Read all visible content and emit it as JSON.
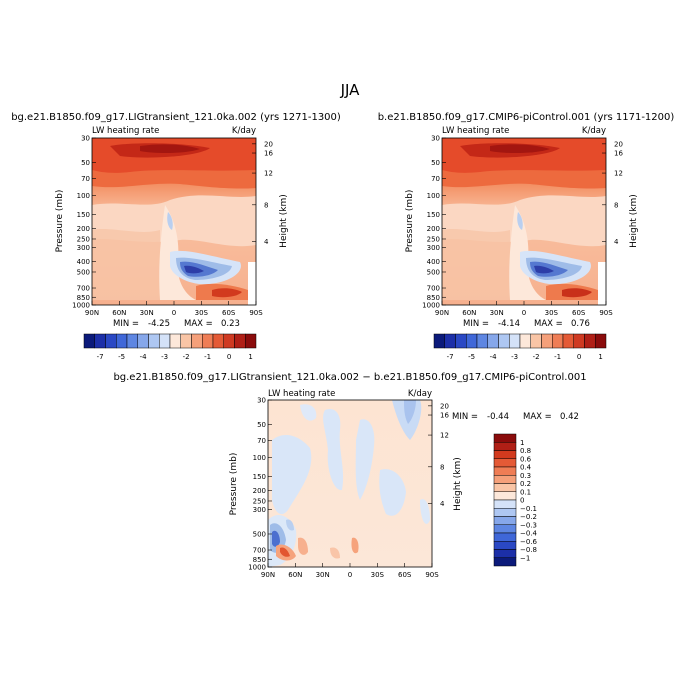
{
  "figure": {
    "season_title": "JJA"
  },
  "colors": {
    "background": "#ffffff",
    "negative_deep": "#1a1e9a",
    "positive_deep": "#8a0b0b",
    "neutral": "#fbe6d8"
  },
  "chart_data": [
    {
      "type": "heatmap",
      "id": "panel-a",
      "title": "bg.e21.B1850.f09_g17.LIGtransient_121.0ka.002 (yrs 1271-1300)",
      "variable_label": "LW heating rate",
      "units": "K/day",
      "ylabel": "Pressure (mb)",
      "ylabel_right": "Height (km)",
      "x_ticks": [
        "90N",
        "60N",
        "30N",
        "0",
        "30S",
        "60S",
        "90S"
      ],
      "y_ticks": [
        1000,
        850,
        700,
        500,
        400,
        300,
        250,
        200,
        150,
        100,
        70,
        50,
        30
      ],
      "height_ticks": [
        4,
        8,
        12,
        16,
        20
      ],
      "ylim": [
        1000,
        30
      ],
      "ylog": true,
      "min_label": "MIN =",
      "min_value": "-4.25",
      "max_label": "MAX =",
      "max_value": "0.23",
      "colorbar_levels": [
        "-7",
        "-5",
        "-4",
        "-3",
        "-2",
        "-1",
        "0",
        "1"
      ]
    },
    {
      "type": "heatmap",
      "id": "panel-b",
      "title": "b.e21.B1850.f09_g17.CMIP6-piControl.001 (yrs 1171-1200)",
      "variable_label": "LW heating rate",
      "units": "K/day",
      "ylabel": "Pressure (mb)",
      "ylabel_right": "Height (km)",
      "x_ticks": [
        "90N",
        "60N",
        "30N",
        "0",
        "30S",
        "60S",
        "90S"
      ],
      "y_ticks": [
        1000,
        850,
        700,
        500,
        400,
        300,
        250,
        200,
        150,
        100,
        70,
        50,
        30
      ],
      "height_ticks": [
        4,
        8,
        12,
        16,
        20
      ],
      "ylim": [
        1000,
        30
      ],
      "ylog": true,
      "min_label": "MIN =",
      "min_value": "-4.14",
      "max_label": "MAX =",
      "max_value": "0.76",
      "colorbar_levels": [
        "-7",
        "-5",
        "-4",
        "-3",
        "-2",
        "-1",
        "0",
        "1"
      ]
    },
    {
      "type": "heatmap",
      "id": "panel-diff",
      "title": "bg.e21.B1850.f09_g17.LIGtransient_121.0ka.002 − b.e21.B1850.f09_g17.CMIP6-piControl.001",
      "variable_label": "LW heating rate",
      "units": "K/day",
      "ylabel": "Pressure (mb)",
      "ylabel_right": "Height (km)",
      "x_ticks": [
        "90N",
        "60N",
        "30N",
        "0",
        "30S",
        "60S",
        "90S"
      ],
      "y_ticks": [
        1000,
        850,
        700,
        500,
        300,
        250,
        200,
        150,
        100,
        70,
        50,
        30
      ],
      "height_ticks": [
        4,
        8,
        12,
        16,
        20
      ],
      "ylim": [
        1000,
        30
      ],
      "ylog": true,
      "min_label": "MIN =",
      "min_value": "-0.44",
      "max_label": "MAX =",
      "max_value": "0.42",
      "colorbar_levels": [
        "1",
        "0.8",
        "0.6",
        "0.4",
        "0.3",
        "0.2",
        "0.1",
        "0",
        "−0.1",
        "−0.2",
        "−0.3",
        "−0.4",
        "−0.6",
        "−0.8",
        "−1"
      ]
    }
  ]
}
